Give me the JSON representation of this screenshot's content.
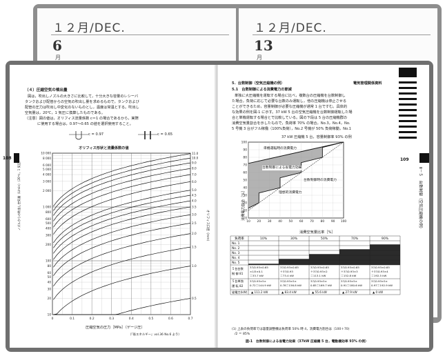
{
  "diary": {
    "left": {
      "month": "１２月/DEC.",
      "day": "6",
      "mon_char": "月"
    },
    "right": {
      "month": "１２月/DEC.",
      "day": "13",
      "mon_char": "月"
    }
  },
  "left_page": {
    "page_number": "108",
    "section_title": "（４）圧縮空気の噴出量",
    "body": [
      "図は，吹出しノズルの大きさに比較して，十分大きな容量のレシーバ",
      "タンクおよび配管からの空気の吹出し量を求めるもので，タンクおよび",
      "配管の圧力は吹出し中変化のないものとし，温度は常温とする。吹出し",
      "空気量は，20℃，1 気圧に換算したものである。",
      "（注意）図の値は，オリフィス流量係数 c＝1 の場合であるから，実際",
      "に使用する場合は，0.97～0.65 の値を選択使用すること。"
    ],
    "orifice_a": "c = 0.97",
    "orifice_b": "c = 0.65",
    "chart_title": "オリフィス形状と流量係数の値",
    "ylabel": "ノズルからの吹出し空気量（L/min）（20℃，1 気圧）",
    "xlabel": "圧縮空気の圧力［MPa］（ゲージ圧）",
    "right_axis": "オリフィス口径（mm）",
    "source": "（『省エネルギー』vol.36 No.6 より）"
  },
  "right_page": {
    "page_number": "109",
    "header": "電気管理関係資料",
    "section": "5．台数制御（空気圧縮機の例）",
    "subsection": "5.1　台数制御による消費電力の節減",
    "body": [
      "単独に大圧縮機を運転する場合に比べ，複数台の圧縮機を台数制御し",
      "た場合，負荷に応じて必要な台数のみ運転し，他の圧縮機は停止させる",
      "ことができるため，容量制御が必要な圧縮機が通常 1 台ですむ。具体的",
      "な効果の例を図-1 に示す。37 kW 5 台の空気圧縮機を台数制御運転した場",
      "合と単機運転する場合とで比較している。図の下段は 5 台の圧縮機群の",
      "消費空気量割合を示したもので，負荷率 70% の場合，No.3，No.4，No.",
      "5 号機 3 台がフル稼働（100%負荷），No.2 号機が 50% 負荷稼動，No.1"
    ],
    "vertical_title": "Ⅱ－５　台数制御（空気圧縮機の例）",
    "graph_title": "37 kW 圧縮機 5 台，容量制御率 93% の例",
    "graph": {
      "ylabel": "消費電力割合［%］",
      "xlabel": "消費空気量比率［%］",
      "label_single": "単機運転時の消費電力",
      "label_saving": "台数制御による省電力効果",
      "label_multi": "台数制御時の消費電力",
      "label_ideal": "理想的消費電力"
    },
    "table": {
      "header": [
        "負荷率",
        "10%",
        "30%",
        "50%",
        "70%",
        "90%"
      ],
      "rows": [
        "No. 1",
        "No. 2",
        "No. 3",
        "No. 4",
        "No. 5"
      ],
      "calc_label": [
        "５台台数",
        "制 御 81"
      ],
      "calc": [
        [
          "37/0.93×0.65",
          "×1/5×0.1",
          "＝33.7 kW"
        ],
        [
          "37/0.93×0.65",
          "＋37/0.93",
          "＝73.4 kW"
        ],
        [
          "37/0.93×0.65",
          "＋37/0.93×2",
          "＝113.1 kW"
        ],
        [
          "37/0.93×0.65",
          "＋37/0.93×3",
          "＝152.8 kW"
        ],
        [
          "37/0.93×0.65",
          "＋37/0.93×4",
          "＝192.5 kW"
        ]
      ],
      "single_label": [
        "５台単独",
        "運 転 82"
      ],
      "single": [
        "37/0.93×5×",
        "0.72＝144.9 kW",
        "0.78＝156.8 kW",
        "0.85＝169.7 kW",
        "0.91＝180.6 kW",
        "0.97＝192.9 kW"
      ],
      "saving_label": "省電力(kW)",
      "saving": [
        "▲ 111.2 kW",
        "▲ 83.4 kW",
        "▲ 55.6 kW",
        "▲ 27.9 kW",
        "▲ 0 kW"
      ]
    },
    "note": [
      "(1) 上表の負荷率では容量調整機は負荷率 50% 時 4，消費電力割合は（100＋70)",
      "/2 ＝ 85%"
    ],
    "caption": "図-1　台数制御による省電力効果（37kW 圧縮機 5 台，電動機効率 93% の例）"
  },
  "chart_data": [
    {
      "type": "line",
      "title": "オリフィス形状と流量係数の値",
      "xlabel": "圧縮空気の圧力［MPa］（ゲージ圧）",
      "ylabel": "ノズルからの吹出し空気量（L/min）",
      "x_ticks": [
        "0",
        "0.1",
        "0.2",
        "0.3",
        "0.4",
        "0.5",
        "0.6",
        "0.7"
      ],
      "y_ticks": [
        "10 000",
        "8 000",
        "6 000",
        "5 000",
        "4 000",
        "3 000",
        "2 000",
        "1 000",
        "800",
        "600",
        "500",
        "400",
        "300",
        "200",
        "100",
        "80",
        "60",
        "50",
        "40",
        "30",
        "20",
        "10"
      ],
      "y_scale": "log",
      "ylim": [
        10,
        10000
      ],
      "xlim": [
        0,
        0.7
      ],
      "series_labels": [
        "11.0",
        "10.0",
        "9.0",
        "8.0",
        "7.0",
        "6.0",
        "5.0",
        "4.5",
        "4.0",
        "3.5",
        "3.0",
        "2.5",
        "2.0",
        "1.5",
        "1.0",
        "0.5"
      ],
      "series_end": [
        9800,
        8100,
        6600,
        5200,
        4000,
        2950,
        2050,
        1650,
        1300,
        1000,
        720,
        500,
        320,
        180,
        80,
        20
      ]
    },
    {
      "type": "line",
      "title": "37 kW 圧縮機 5 台，容量制御率 93% の例",
      "xlabel": "消費空気量比率［%］",
      "ylabel": "消費電力割合［%］",
      "x_ticks": [
        "10",
        "20",
        "30",
        "40",
        "50",
        "60",
        "70",
        "80",
        "90",
        "100"
      ],
      "y_ticks": [
        "0",
        "10",
        "20",
        "30",
        "40",
        "50",
        "60",
        "70",
        "80",
        "90",
        "100"
      ],
      "xlim": [
        10,
        100
      ],
      "ylim": [
        0,
        100
      ],
      "series": [
        {
          "name": "単機運転時の消費電力",
          "x": [
            10,
            100
          ],
          "y": [
            72,
            100
          ]
        },
        {
          "name": "台数制御時の消費電力",
          "x": [
            10,
            20,
            20,
            40,
            40,
            60,
            60,
            80,
            80,
            100
          ],
          "y": [
            13,
            20,
            33,
            40,
            53,
            60,
            73,
            80,
            93,
            100
          ]
        },
        {
          "name": "理想的消費電力",
          "x": [
            10,
            100
          ],
          "y": [
            10,
            100
          ]
        }
      ]
    }
  ]
}
